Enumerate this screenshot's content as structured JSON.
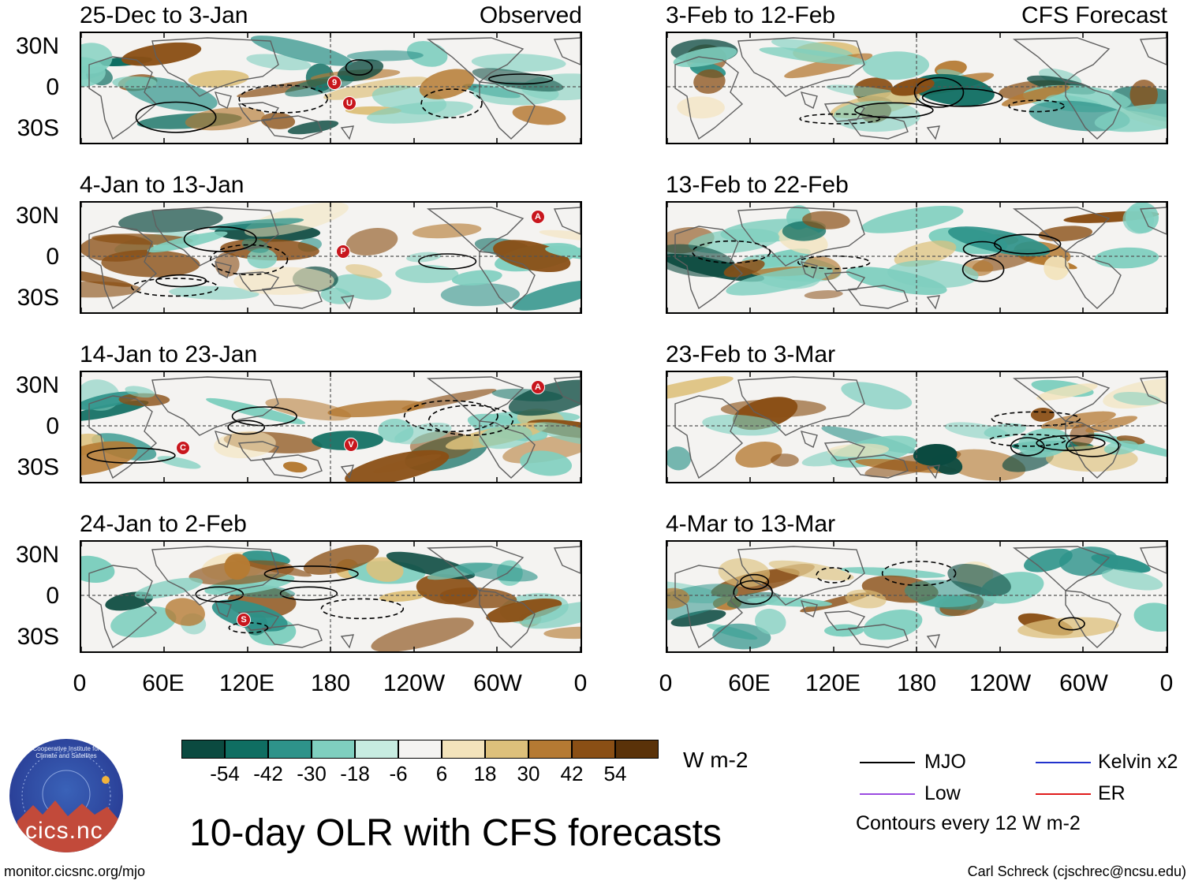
{
  "title": "10-day OLR with CFS forecasts",
  "units": "W m-2",
  "logo_text": "cics.nc",
  "logo_ring_text": "Cooperative Institute for Climate and Satellites",
  "footer_left": "monitor.cicsnc.org/mjo",
  "footer_right": "Carl Schreck (cjschrec@ncsu.edu)",
  "contour_note": "Contours every 12 W m-2",
  "latitude_labels": [
    "30N",
    "0",
    "30S"
  ],
  "longitude_labels": [
    "0",
    "60E",
    "120E",
    "180",
    "120W",
    "60W",
    "0"
  ],
  "columns": {
    "observed_label": "Observed",
    "forecast_label": "CFS Forecast"
  },
  "panels": {
    "observed": [
      {
        "period": "25-Dec to 3-Jan",
        "storms": [
          "9",
          "U"
        ]
      },
      {
        "period": "4-Jan to 13-Jan",
        "storms": [
          "P",
          "A"
        ]
      },
      {
        "period": "14-Jan to 23-Jan",
        "storms": [
          "C",
          "V",
          "A"
        ]
      },
      {
        "period": "24-Jan to 2-Feb",
        "storms": [
          "S"
        ]
      }
    ],
    "forecast": [
      {
        "period": "3-Feb to 12-Feb"
      },
      {
        "period": "13-Feb to 22-Feb"
      },
      {
        "period": "23-Feb to 3-Mar"
      },
      {
        "period": "4-Mar to 13-Mar"
      }
    ]
  },
  "colorbar": {
    "ticks": [
      "-54",
      "-42",
      "-30",
      "-18",
      "-6",
      "6",
      "18",
      "30",
      "42",
      "54"
    ],
    "colors": [
      "#0b4a40",
      "#0f6e62",
      "#2e938a",
      "#7fcfbf",
      "#c7ece1",
      "#f4f3f1",
      "#f3e3bb",
      "#ddc07b",
      "#b57a33",
      "#8a4f15",
      "#5a3209"
    ]
  },
  "legend": [
    {
      "label": "MJO",
      "color": "#000000"
    },
    {
      "label": "Kelvin x2",
      "color": "#2233cc"
    },
    {
      "label": "Low",
      "color": "#9b4be0"
    },
    {
      "label": "ER",
      "color": "#e01c1c"
    }
  ]
}
